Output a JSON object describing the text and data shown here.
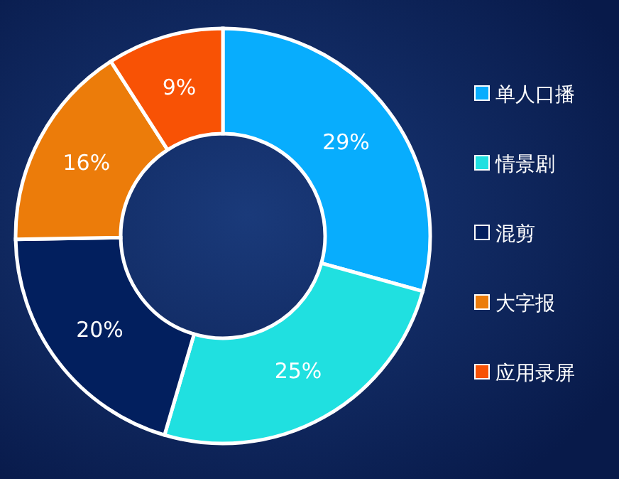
{
  "chart_data": {
    "type": "donut",
    "categories": [
      "单人口播",
      "情景剧",
      "混剪",
      "大字报",
      "应用录屏"
    ],
    "values": [
      29,
      25,
      20,
      16,
      9
    ],
    "colors": [
      "#08adfd",
      "#20e0e0",
      "#021f5e",
      "#ec7c0a",
      "#f85205"
    ],
    "value_labels": [
      "29%",
      "25%",
      "20%",
      "16%",
      "9%"
    ],
    "legend": "right"
  }
}
